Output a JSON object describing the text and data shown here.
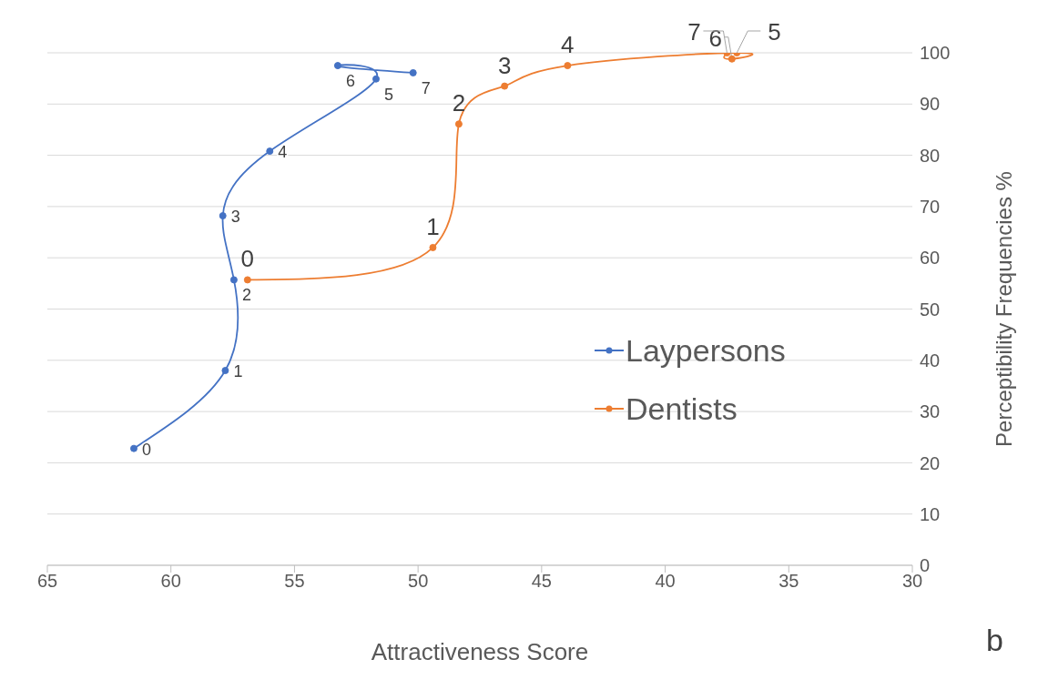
{
  "chart_data": {
    "type": "line",
    "xlabel": "Attractiveness Score",
    "ylabel": "Perceptibility Frequencies %",
    "xlim": [
      65,
      30
    ],
    "xticks": [
      65,
      60,
      55,
      50,
      45,
      40,
      35,
      30
    ],
    "ylim": [
      0,
      100
    ],
    "yticks": [
      0,
      10,
      20,
      30,
      40,
      50,
      60,
      70,
      80,
      90,
      100
    ],
    "grid": "y",
    "legend": "right",
    "marker": "circle",
    "annotations": [
      "b",
      {
        "text": "0",
        "x": 61.5,
        "y": 22.8
      },
      {
        "text": "1",
        "x": 57.8,
        "y": 38.0
      },
      {
        "text": "2",
        "x": 57.45,
        "y": 55.7
      },
      {
        "text": "3",
        "x": 57.9,
        "y": 68.2
      },
      {
        "text": "4",
        "x": 56.0,
        "y": 80.8
      },
      {
        "text": "5",
        "x": 51.7,
        "y": 94.9
      },
      {
        "text": "6",
        "x": 53.25,
        "y": 97.5
      },
      {
        "text": "7",
        "x": 50.2,
        "y": 96.1
      },
      {
        "text": "0",
        "x": 56.9,
        "y": 55.7
      },
      {
        "text": "1",
        "x": 49.4,
        "y": 62.0
      },
      {
        "text": "2",
        "x": 48.35,
        "y": 86.1
      },
      {
        "text": "3",
        "x": 46.5,
        "y": 93.5
      },
      {
        "text": "4",
        "x": 43.95,
        "y": 97.5
      },
      {
        "text": "5",
        "x": 37.1,
        "y": 100
      },
      {
        "text": "6",
        "x": 37.3,
        "y": 98.8
      },
      {
        "text": "7",
        "x": 37.5,
        "y": 100
      }
    ],
    "series": [
      {
        "name": "Laypersons",
        "color": "#4472c4",
        "x": [
          61.5,
          57.8,
          57.45,
          57.9,
          56.0,
          51.7,
          53.25,
          50.2
        ],
        "values": [
          22.8,
          38.0,
          55.7,
          68.2,
          80.8,
          94.9,
          97.5,
          96.1
        ]
      },
      {
        "name": "Dentists",
        "color": "#ed7d31",
        "x": [
          56.9,
          49.4,
          48.35,
          46.5,
          43.95,
          37.1,
          37.3,
          37.5
        ],
        "values": [
          55.7,
          62.0,
          86.1,
          93.5,
          97.5,
          100,
          98.8,
          100
        ]
      }
    ]
  }
}
